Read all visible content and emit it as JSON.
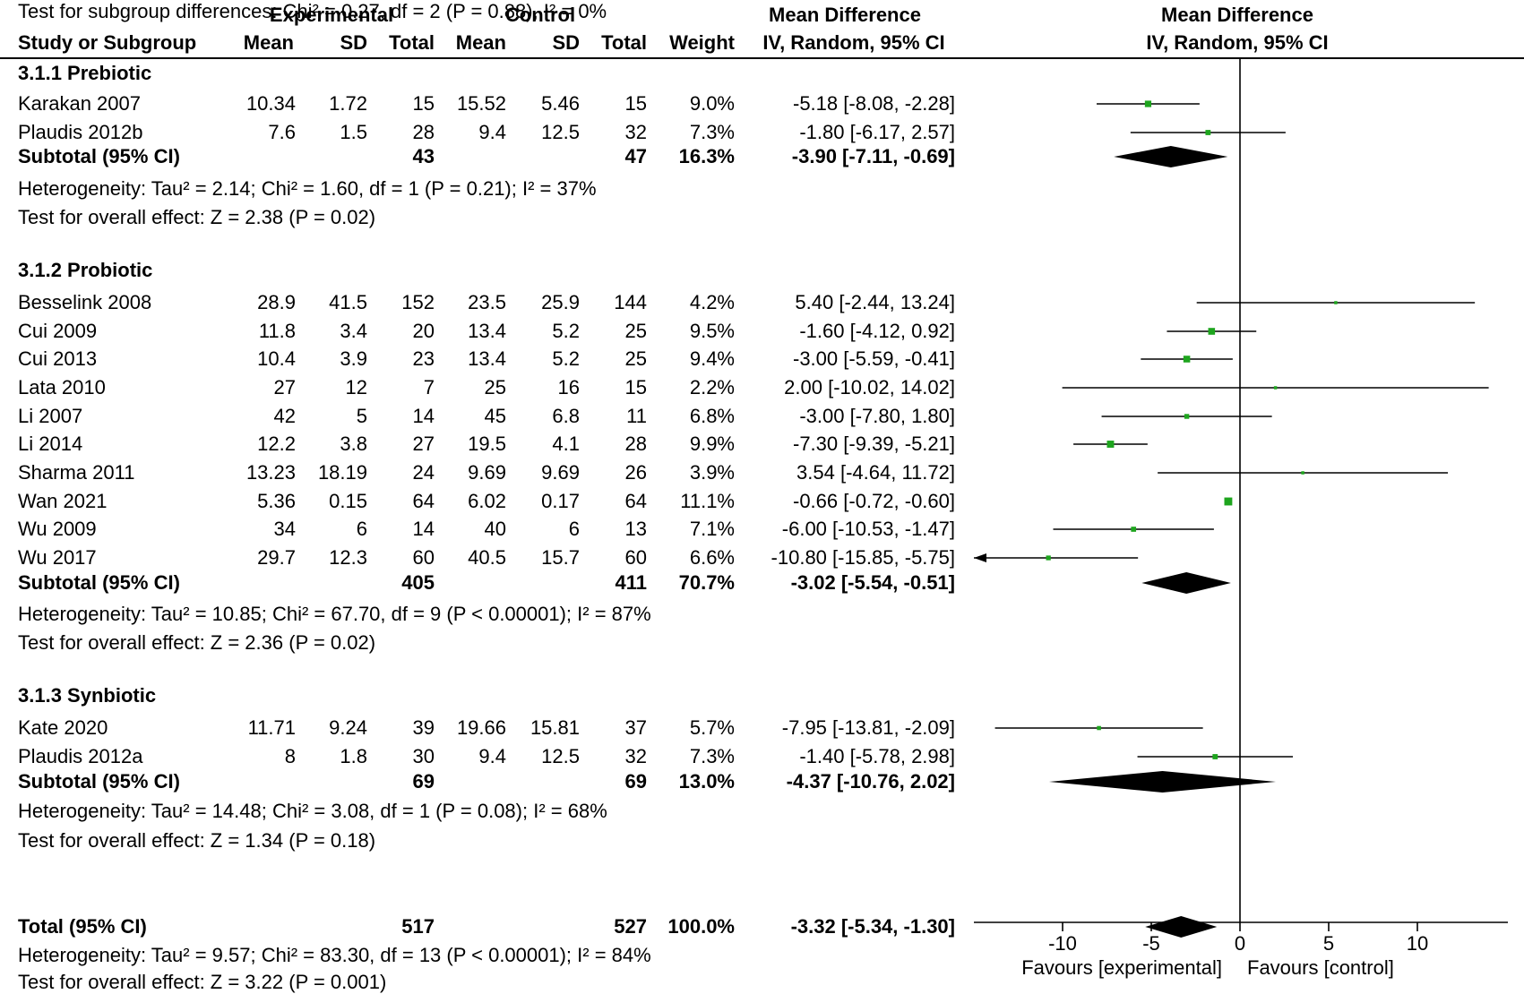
{
  "header": {
    "experimental": "Experimental",
    "control": "Control",
    "md_text_1": "Mean Difference",
    "md_text_2": "IV, Random, 95% CI",
    "md_plot_1": "Mean Difference",
    "md_plot_2": "IV, Random, 95% CI",
    "study": "Study or Subgroup",
    "mean_e": "Mean",
    "sd_e": "SD",
    "total_e": "Total",
    "mean_c": "Mean",
    "sd_c": "SD",
    "total_c": "Total",
    "weight": "Weight"
  },
  "chart_data": {
    "type": "forest",
    "xlim": [
      -15,
      15
    ],
    "xticks": [
      -10,
      -5,
      0,
      5,
      10
    ],
    "xtick_labels": [
      "-10",
      "-5",
      "0",
      "5",
      "10"
    ],
    "favours_left": "Favours [experimental]",
    "favours_right": "Favours [control]",
    "rows": [
      {
        "kind": "heading",
        "label": "3.1.1 Prebiotic"
      },
      {
        "kind": "study",
        "label": "Karakan 2007",
        "mean_e": "10.34",
        "sd_e": "1.72",
        "n_e": "15",
        "mean_c": "15.52",
        "sd_c": "5.46",
        "n_c": "15",
        "weight": "9.0%",
        "ci": "-5.18 [-8.08, -2.28]",
        "md": -5.18,
        "lo": -8.08,
        "hi": -2.28,
        "w": 9.0
      },
      {
        "kind": "study",
        "label": "Plaudis 2012b",
        "mean_e": "7.6",
        "sd_e": "1.5",
        "n_e": "28",
        "mean_c": "9.4",
        "sd_c": "12.5",
        "n_c": "32",
        "weight": "7.3%",
        "ci": "-1.80 [-6.17, 2.57]",
        "md": -1.8,
        "lo": -6.17,
        "hi": 2.57,
        "w": 7.3
      },
      {
        "kind": "subtotal",
        "label": "Subtotal (95% CI)",
        "n_e": "43",
        "n_c": "47",
        "weight": "16.3%",
        "ci": "-3.90 [-7.11, -0.69]",
        "md": -3.9,
        "lo": -7.11,
        "hi": -0.69
      },
      {
        "kind": "note",
        "label": "Heterogeneity: Tau² = 2.14; Chi² = 1.60, df = 1 (P = 0.21); I² = 37%"
      },
      {
        "kind": "note",
        "label": "Test for overall effect: Z = 2.38 (P = 0.02)"
      },
      {
        "kind": "blank"
      },
      {
        "kind": "heading",
        "label": "3.1.2 Probiotic"
      },
      {
        "kind": "study",
        "label": "Besselink 2008",
        "mean_e": "28.9",
        "sd_e": "41.5",
        "n_e": "152",
        "mean_c": "23.5",
        "sd_c": "25.9",
        "n_c": "144",
        "weight": "4.2%",
        "ci": "5.40 [-2.44, 13.24]",
        "md": 5.4,
        "lo": -2.44,
        "hi": 13.24,
        "w": 4.2
      },
      {
        "kind": "study",
        "label": "Cui 2009",
        "mean_e": "11.8",
        "sd_e": "3.4",
        "n_e": "20",
        "mean_c": "13.4",
        "sd_c": "5.2",
        "n_c": "25",
        "weight": "9.5%",
        "ci": "-1.60 [-4.12, 0.92]",
        "md": -1.6,
        "lo": -4.12,
        "hi": 0.92,
        "w": 9.5
      },
      {
        "kind": "study",
        "label": "Cui 2013",
        "mean_e": "10.4",
        "sd_e": "3.9",
        "n_e": "23",
        "mean_c": "13.4",
        "sd_c": "5.2",
        "n_c": "25",
        "weight": "9.4%",
        "ci": "-3.00 [-5.59, -0.41]",
        "md": -3.0,
        "lo": -5.59,
        "hi": -0.41,
        "w": 9.4
      },
      {
        "kind": "study",
        "label": "Lata 2010",
        "mean_e": "27",
        "sd_e": "12",
        "n_e": "7",
        "mean_c": "25",
        "sd_c": "16",
        "n_c": "15",
        "weight": "2.2%",
        "ci": "2.00 [-10.02, 14.02]",
        "md": 2.0,
        "lo": -10.02,
        "hi": 14.02,
        "w": 2.2
      },
      {
        "kind": "study",
        "label": "Li 2007",
        "mean_e": "42",
        "sd_e": "5",
        "n_e": "14",
        "mean_c": "45",
        "sd_c": "6.8",
        "n_c": "11",
        "weight": "6.8%",
        "ci": "-3.00 [-7.80, 1.80]",
        "md": -3.0,
        "lo": -7.8,
        "hi": 1.8,
        "w": 6.8
      },
      {
        "kind": "study",
        "label": "Li 2014",
        "mean_e": "12.2",
        "sd_e": "3.8",
        "n_e": "27",
        "mean_c": "19.5",
        "sd_c": "4.1",
        "n_c": "28",
        "weight": "9.9%",
        "ci": "-7.30 [-9.39, -5.21]",
        "md": -7.3,
        "lo": -9.39,
        "hi": -5.21,
        "w": 9.9
      },
      {
        "kind": "study",
        "label": "Sharma 2011",
        "mean_e": "13.23",
        "sd_e": "18.19",
        "n_e": "24",
        "mean_c": "9.69",
        "sd_c": "9.69",
        "n_c": "26",
        "weight": "3.9%",
        "ci": "3.54 [-4.64, 11.72]",
        "md": 3.54,
        "lo": -4.64,
        "hi": 11.72,
        "w": 3.9
      },
      {
        "kind": "study",
        "label": "Wan 2021",
        "mean_e": "5.36",
        "sd_e": "0.15",
        "n_e": "64",
        "mean_c": "6.02",
        "sd_c": "0.17",
        "n_c": "64",
        "weight": "11.1%",
        "ci": "-0.66 [-0.72, -0.60]",
        "md": -0.66,
        "lo": -0.72,
        "hi": -0.6,
        "w": 11.1
      },
      {
        "kind": "study",
        "label": "Wu 2009",
        "mean_e": "34",
        "sd_e": "6",
        "n_e": "14",
        "mean_c": "40",
        "sd_c": "6",
        "n_c": "13",
        "weight": "7.1%",
        "ci": "-6.00 [-10.53, -1.47]",
        "md": -6.0,
        "lo": -10.53,
        "hi": -1.47,
        "w": 7.1
      },
      {
        "kind": "study",
        "label": "Wu 2017",
        "mean_e": "29.7",
        "sd_e": "12.3",
        "n_e": "60",
        "mean_c": "40.5",
        "sd_c": "15.7",
        "n_c": "60",
        "weight": "6.6%",
        "ci": "-10.80 [-15.85, -5.75]",
        "md": -10.8,
        "lo": -15.85,
        "hi": -5.75,
        "w": 6.6
      },
      {
        "kind": "subtotal",
        "label": "Subtotal (95% CI)",
        "n_e": "405",
        "n_c": "411",
        "weight": "70.7%",
        "ci": "-3.02 [-5.54, -0.51]",
        "md": -3.02,
        "lo": -5.54,
        "hi": -0.51
      },
      {
        "kind": "note",
        "label": "Heterogeneity: Tau² = 10.85; Chi² = 67.70, df = 9 (P < 0.00001); I² = 87%"
      },
      {
        "kind": "note",
        "label": "Test for overall effect: Z = 2.36 (P = 0.02)"
      },
      {
        "kind": "blank"
      },
      {
        "kind": "heading",
        "label": "3.1.3 Synbiotic"
      },
      {
        "kind": "study",
        "label": "Kate 2020",
        "mean_e": "11.71",
        "sd_e": "9.24",
        "n_e": "39",
        "mean_c": "19.66",
        "sd_c": "15.81",
        "n_c": "37",
        "weight": "5.7%",
        "ci": "-7.95 [-13.81, -2.09]",
        "md": -7.95,
        "lo": -13.81,
        "hi": -2.09,
        "w": 5.7
      },
      {
        "kind": "study",
        "label": "Plaudis 2012a",
        "mean_e": "8",
        "sd_e": "1.8",
        "n_e": "30",
        "mean_c": "9.4",
        "sd_c": "12.5",
        "n_c": "32",
        "weight": "7.3%",
        "ci": "-1.40 [-5.78, 2.98]",
        "md": -1.4,
        "lo": -5.78,
        "hi": 2.98,
        "w": 7.3
      },
      {
        "kind": "subtotal",
        "label": "Subtotal (95% CI)",
        "n_e": "69",
        "n_c": "69",
        "weight": "13.0%",
        "ci": "-4.37 [-10.76, 2.02]",
        "md": -4.37,
        "lo": -10.76,
        "hi": 2.02
      },
      {
        "kind": "note",
        "label": "Heterogeneity: Tau² = 14.48; Chi² = 3.08, df = 1 (P = 0.08); I² = 68%"
      },
      {
        "kind": "note",
        "label": "Test for overall effect: Z = 1.34 (P = 0.18)"
      },
      {
        "kind": "blank"
      },
      {
        "kind": "subtotal",
        "label": "Total (95% CI)",
        "n_e": "517",
        "n_c": "527",
        "weight": "100.0%",
        "ci": "-3.32 [-5.34, -1.30]",
        "md": -3.32,
        "lo": -5.34,
        "hi": -1.3
      },
      {
        "kind": "note",
        "label": "Heterogeneity: Tau² = 9.57; Chi² = 83.30, df = 13 (P < 0.00001); I² = 84%"
      },
      {
        "kind": "note",
        "label": "Test for overall effect: Z = 3.22 (P = 0.001)"
      },
      {
        "kind": "note",
        "label": "Test for subgroup differences: Chi² = 0.27, df = 2 (P = 0.88), I² = 0%"
      }
    ],
    "colors": {
      "marker": "#1ea51e",
      "diamond": "#000000",
      "line": "#000000"
    }
  }
}
